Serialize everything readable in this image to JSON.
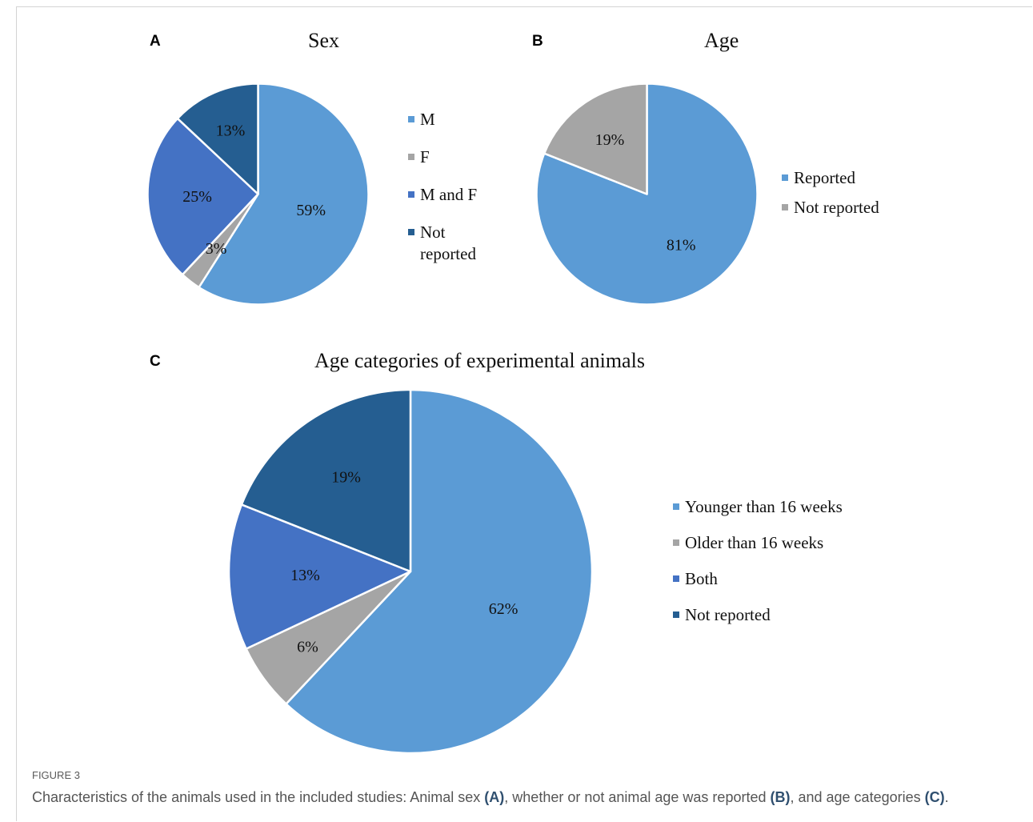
{
  "figure": {
    "label": "FIGURE 3",
    "caption": {
      "pre": "Characteristics of the animals used in the included studies: Animal sex ",
      "ref_a": "(A)",
      "mid1": ", whether or not animal age was reported ",
      "ref_b": "(B)",
      "mid2": ", and age categories ",
      "ref_c": "(C)",
      "post": "."
    }
  },
  "panels": {
    "a": "A",
    "b": "B",
    "c": "C"
  },
  "colors": {
    "light_blue": "#5b9bd5",
    "gray": "#a5a5a5",
    "medium_blue": "#4472c4",
    "dark_blue": "#255e91"
  },
  "chart_data": [
    {
      "type": "pie",
      "title": "Sex",
      "labels": [
        "M",
        "F",
        "M and F",
        "Not\nreported"
      ],
      "values": [
        59,
        3,
        25,
        13
      ],
      "value_labels": [
        "59%",
        "3%",
        "25%",
        "13%"
      ],
      "colors": [
        "#5b9bd5",
        "#a5a5a5",
        "#4472c4",
        "#255e91"
      ],
      "legend": "right"
    },
    {
      "type": "pie",
      "title": "Age",
      "labels": [
        "Reported",
        "Not reported"
      ],
      "values": [
        81,
        19
      ],
      "value_labels": [
        "81%",
        "19%"
      ],
      "colors": [
        "#5b9bd5",
        "#a5a5a5"
      ],
      "legend": "right"
    },
    {
      "type": "pie",
      "title": "Age categories of experimental animals",
      "labels": [
        "Younger than 16 weeks",
        "Older than 16 weeks",
        "Both",
        "Not reported"
      ],
      "values": [
        62,
        6,
        13,
        19
      ],
      "value_labels": [
        "62%",
        "6%",
        "13%",
        "19%"
      ],
      "colors": [
        "#5b9bd5",
        "#a5a5a5",
        "#4472c4",
        "#255e91"
      ],
      "legend": "right"
    }
  ]
}
